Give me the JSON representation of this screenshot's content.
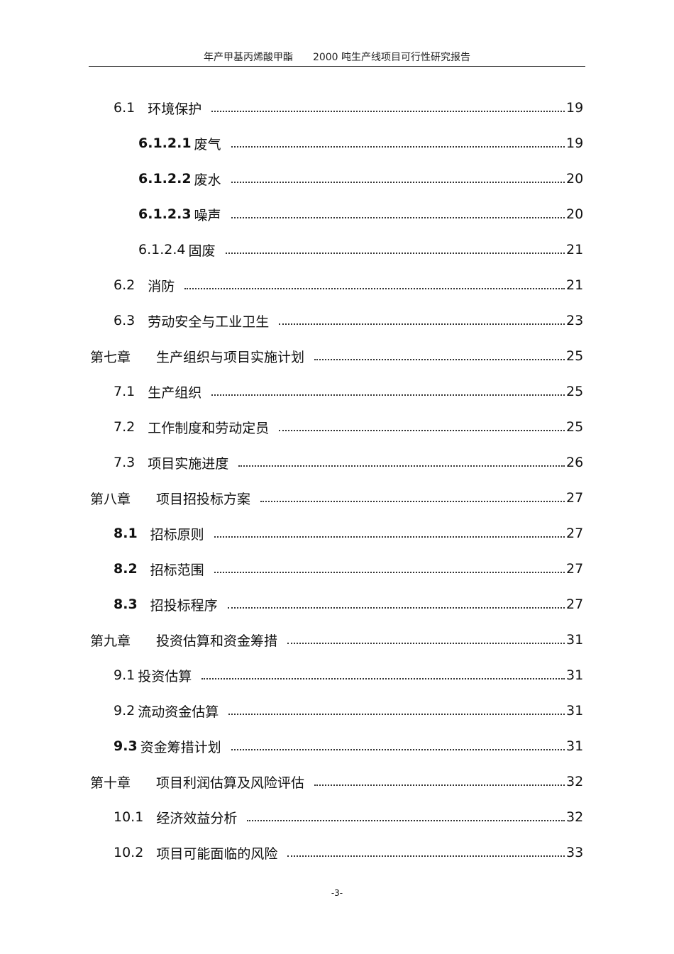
{
  "header": {
    "left": "年产甲基丙烯酸甲酯",
    "right": "2000 吨生产线项目可行性研究报告"
  },
  "toc": [
    {
      "level": 1,
      "num": "6.1",
      "title": "环境保护",
      "page": "19",
      "bold": false
    },
    {
      "level": 2,
      "num": "6.1.2.1",
      "title": "废气",
      "page": "19",
      "bold": true
    },
    {
      "level": 2,
      "num": "6.1.2.2",
      "title": "废水",
      "page": "20",
      "bold": true
    },
    {
      "level": 2,
      "num": "6.1.2.3",
      "title": "噪声",
      "page": "20",
      "bold": true
    },
    {
      "level": 2,
      "num": "6.1.2.4",
      "title": "固废",
      "page": "21",
      "bold": false
    },
    {
      "level": 1,
      "num": "6.2",
      "title": "消防",
      "page": "21",
      "bold": false
    },
    {
      "level": 1,
      "num": "6.3",
      "title": "劳动安全与工业卫生",
      "page": "23",
      "bold": false
    },
    {
      "level": 0,
      "num": "第七章",
      "title": "生产组织与项目实施计划",
      "page": "25",
      "bold": false
    },
    {
      "level": 1,
      "num": "7.1",
      "title": "生产组织",
      "page": "25",
      "bold": false
    },
    {
      "level": 1,
      "num": "7.2",
      "title": "工作制度和劳动定员",
      "page": "25",
      "bold": false
    },
    {
      "level": 1,
      "num": "7.3",
      "title": "项目实施进度",
      "page": "26",
      "bold": false
    },
    {
      "level": 0,
      "num": "第八章",
      "title": "项目招投标方案",
      "page": "27",
      "bold": false
    },
    {
      "level": 1,
      "num": "8.1",
      "title": "招标原则",
      "page": "27",
      "bold": true
    },
    {
      "level": 1,
      "num": "8.2",
      "title": "招标范围",
      "page": "27",
      "bold": true
    },
    {
      "level": 1,
      "num": "8.3",
      "title": "招投标程序",
      "page": "27",
      "bold": true
    },
    {
      "level": 0,
      "num": "第九章",
      "title": "投资估算和资金筹措",
      "page": "31",
      "bold": false
    },
    {
      "level": 1,
      "num": "9.1",
      "title": "投资估算",
      "page": "31",
      "bold": false
    },
    {
      "level": 1,
      "num": "9.2",
      "title": "流动资金估算",
      "page": "31",
      "bold": false
    },
    {
      "level": 1,
      "num": "9.3",
      "title": "资金筹措计划",
      "page": "31",
      "bold": true
    },
    {
      "level": 0,
      "num": "第十章",
      "title": "项目利润估算及风险评估",
      "page": "32",
      "bold": false
    },
    {
      "level": 1,
      "num": "10.1",
      "title": "经济效益分析",
      "page": "32",
      "bold": false
    },
    {
      "level": 1,
      "num": "10.2",
      "title": "项目可能面临的风险",
      "page": "33",
      "bold": false
    }
  ],
  "footer": {
    "page_label": "-3-"
  }
}
